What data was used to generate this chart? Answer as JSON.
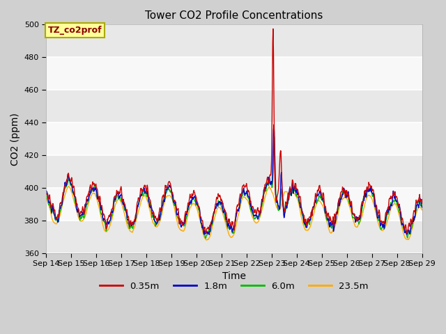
{
  "title": "Tower CO2 Profile Concentrations",
  "xlabel": "Time",
  "ylabel": "CO2 (ppm)",
  "ylim": [
    360,
    500
  ],
  "yticks": [
    360,
    380,
    400,
    420,
    440,
    460,
    480,
    500
  ],
  "fig_facecolor": "#d8d8d8",
  "plot_facecolor": "#f0f0f0",
  "series": [
    "0.35m",
    "1.8m",
    "6.0m",
    "23.5m"
  ],
  "colors": [
    "#cc0000",
    "#0000cc",
    "#00bb00",
    "#ffaa00"
  ],
  "linewidth": 1.0,
  "annotation_text": "TZ_co2prof",
  "x_tick_labels": [
    "Sep 14",
    "Sep 15",
    "Sep 16",
    "Sep 17",
    "Sep 18",
    "Sep 19",
    "Sep 20",
    "Sep 21",
    "Sep 22",
    "Sep 23",
    "Sep 24",
    "Sep 25",
    "Sep 26",
    "Sep 27",
    "Sep 28",
    "Sep 29"
  ],
  "n_points": 960
}
